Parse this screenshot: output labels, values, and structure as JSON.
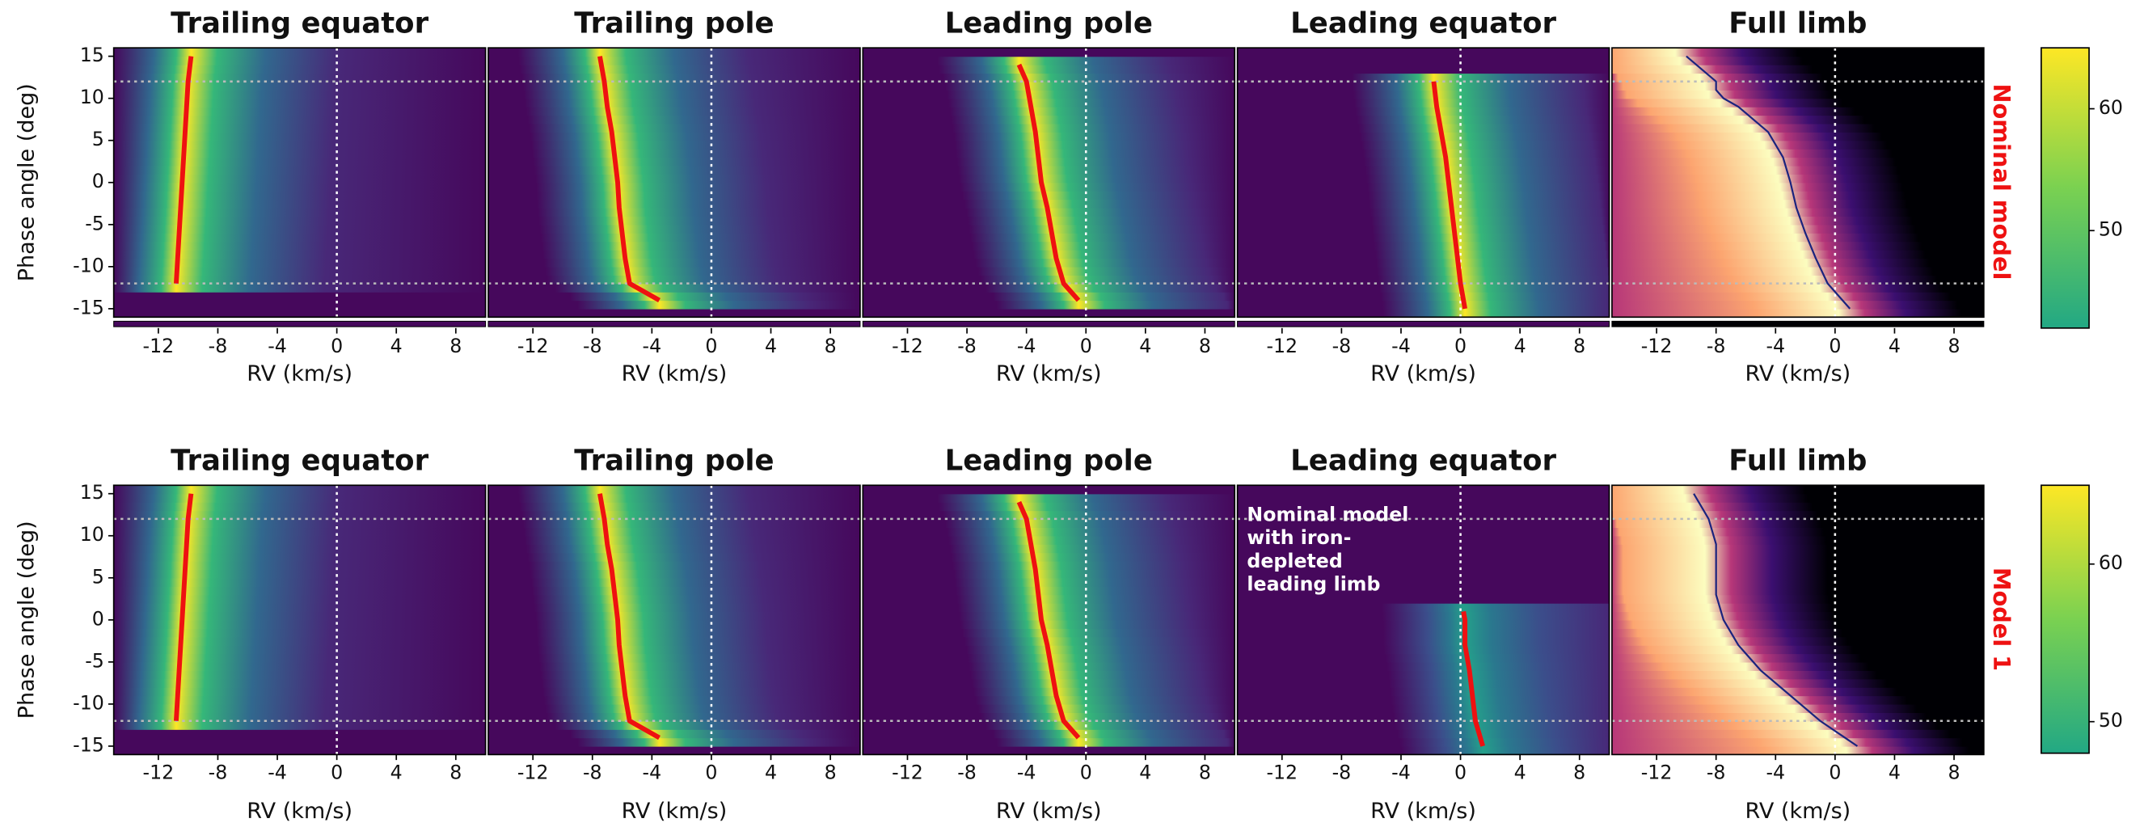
{
  "chart_data": [
    {
      "type": "heatmap",
      "title": "Trailing equator",
      "xlabel": "RV (km/s)",
      "ylabel": "Phase angle (deg)",
      "xlim": [
        -15,
        10
      ],
      "xticks": [
        -12,
        -8,
        -4,
        0,
        4,
        8
      ],
      "ylim": [
        -16,
        16
      ],
      "yticks": [
        15,
        10,
        5,
        0,
        -5,
        -10,
        -15
      ],
      "colormap": "viridis",
      "colors": [
        "#46085c",
        "#31688e",
        "#35b779",
        "#fde725"
      ],
      "hlines": [
        -12,
        12
      ],
      "vlines": [
        0
      ],
      "line": {
        "color": "#ee1111",
        "x": [
          -12,
          -9,
          -6,
          -3,
          0,
          3,
          6,
          9,
          12,
          15
        ],
        "values": [
          -10.8,
          -10.7,
          -10.6,
          -10.5,
          -10.4,
          -10.3,
          -10.2,
          -10.1,
          -10,
          -9.8
        ]
      }
    },
    {
      "type": "heatmap",
      "title": "Trailing pole",
      "xlabel": "RV (km/s)",
      "xlim": [
        -15,
        10
      ],
      "xticks": [
        -12,
        -8,
        -4,
        0,
        4,
        8
      ],
      "ylim": [
        -16,
        16
      ],
      "colormap": "viridis",
      "colors": [
        "#46085c",
        "#31688e",
        "#35b779",
        "#fde725"
      ],
      "hlines": [
        -12,
        12
      ],
      "vlines": [
        0
      ],
      "line": {
        "color": "#ee1111",
        "x": [
          -14,
          -12,
          -9,
          -6,
          -3,
          0,
          3,
          6,
          9,
          12,
          15
        ],
        "values": [
          -3.5,
          -5.5,
          -5.8,
          -6,
          -6.2,
          -6.3,
          -6.5,
          -6.7,
          -7,
          -7.2,
          -7.5
        ]
      }
    },
    {
      "type": "heatmap",
      "title": "Leading pole",
      "xlabel": "RV (km/s)",
      "xlim": [
        -15,
        10
      ],
      "xticks": [
        -12,
        -8,
        -4,
        0,
        4,
        8
      ],
      "ylim": [
        -16,
        16
      ],
      "colormap": "viridis",
      "colors": [
        "#46085c",
        "#31688e",
        "#35b779",
        "#fde725"
      ],
      "hlines": [
        -12,
        12
      ],
      "vlines": [
        0
      ],
      "line": {
        "color": "#ee1111",
        "x": [
          -14,
          -12,
          -9,
          -6,
          -3,
          0,
          3,
          6,
          9,
          12,
          14
        ],
        "values": [
          -0.5,
          -1.5,
          -2,
          -2.3,
          -2.6,
          -3,
          -3.2,
          -3.4,
          -3.7,
          -4,
          -4.5
        ]
      }
    },
    {
      "type": "heatmap",
      "title": "Leading equator",
      "xlabel": "RV (km/s)",
      "xlim": [
        -15,
        10
      ],
      "xticks": [
        -12,
        -8,
        -4,
        0,
        4,
        8
      ],
      "ylim": [
        -16,
        16
      ],
      "colormap": "viridis",
      "colors": [
        "#46085c",
        "#31688e",
        "#35b779",
        "#fde725"
      ],
      "hlines": [
        -12,
        12
      ],
      "vlines": [
        0
      ],
      "line": {
        "color": "#ee1111",
        "x": [
          -15,
          -12,
          -9,
          -6,
          -3,
          0,
          3,
          6,
          9,
          12
        ],
        "values": [
          0.3,
          0,
          -0.2,
          -0.4,
          -0.6,
          -0.8,
          -1,
          -1.3,
          -1.6,
          -1.8
        ]
      }
    },
    {
      "type": "heatmap",
      "title": "Full limb",
      "xlabel": "RV (km/s)",
      "xlim": [
        -15,
        10
      ],
      "xticks": [
        -12,
        -8,
        -4,
        0,
        4,
        8
      ],
      "ylim": [
        -16,
        16
      ],
      "colormap": "magma",
      "colors": [
        "#000004",
        "#b73779",
        "#fca570",
        "#fcfdbf"
      ],
      "hlines": [
        -12,
        12
      ],
      "vlines": [
        0
      ],
      "line": {
        "color": "#1a237e",
        "x": [
          -15,
          -12,
          -9,
          -6,
          -3,
          0,
          3,
          6,
          9,
          10,
          11,
          12,
          15
        ],
        "values": [
          1,
          -0.5,
          -1.3,
          -2,
          -2.6,
          -3,
          -3.5,
          -4.5,
          -6.5,
          -7.5,
          -8,
          -8,
          -10
        ]
      }
    },
    {
      "type": "heatmap",
      "title": "Trailing equator",
      "xlabel": "RV (km/s)",
      "ylabel": "Phase angle (deg)",
      "xlim": [
        -15,
        10
      ],
      "xticks": [
        -12,
        -8,
        -4,
        0,
        4,
        8
      ],
      "ylim": [
        -16,
        16
      ],
      "yticks": [
        15,
        10,
        5,
        0,
        -5,
        -10,
        -15
      ],
      "colormap": "viridis",
      "colors": [
        "#46085c",
        "#31688e",
        "#35b779",
        "#fde725"
      ],
      "hlines": [
        -12,
        12
      ],
      "vlines": [
        0
      ],
      "line": {
        "color": "#ee1111",
        "x": [
          -12,
          -9,
          -6,
          -3,
          0,
          3,
          6,
          9,
          12,
          15
        ],
        "values": [
          -10.8,
          -10.7,
          -10.6,
          -10.5,
          -10.4,
          -10.3,
          -10.2,
          -10.1,
          -10,
          -9.8
        ]
      }
    },
    {
      "type": "heatmap",
      "title": "Trailing pole",
      "xlabel": "RV (km/s)",
      "xlim": [
        -15,
        10
      ],
      "xticks": [
        -12,
        -8,
        -4,
        0,
        4,
        8
      ],
      "ylim": [
        -16,
        16
      ],
      "colormap": "viridis",
      "colors": [
        "#46085c",
        "#31688e",
        "#35b779",
        "#fde725"
      ],
      "hlines": [
        -12,
        12
      ],
      "vlines": [
        0
      ],
      "line": {
        "color": "#ee1111",
        "x": [
          -14,
          -12,
          -9,
          -6,
          -3,
          0,
          3,
          6,
          9,
          12,
          15
        ],
        "values": [
          -3.5,
          -5.5,
          -5.8,
          -6,
          -6.2,
          -6.3,
          -6.5,
          -6.7,
          -7,
          -7.2,
          -7.5
        ]
      }
    },
    {
      "type": "heatmap",
      "title": "Leading pole",
      "xlabel": "RV (km/s)",
      "xlim": [
        -15,
        10
      ],
      "xticks": [
        -12,
        -8,
        -4,
        0,
        4,
        8
      ],
      "ylim": [
        -16,
        16
      ],
      "colormap": "viridis",
      "colors": [
        "#46085c",
        "#31688e",
        "#35b779",
        "#fde725"
      ],
      "hlines": [
        -12,
        12
      ],
      "vlines": [
        0
      ],
      "line": {
        "color": "#ee1111",
        "x": [
          -14,
          -12,
          -9,
          -6,
          -3,
          0,
          3,
          6,
          9,
          12,
          14
        ],
        "values": [
          -0.5,
          -1.5,
          -2,
          -2.3,
          -2.6,
          -3,
          -3.2,
          -3.4,
          -3.7,
          -4,
          -4.5
        ]
      }
    },
    {
      "type": "heatmap",
      "title": "Leading equator",
      "xlabel": "RV (km/s)",
      "xlim": [
        -15,
        10
      ],
      "xticks": [
        -12,
        -8,
        -4,
        0,
        4,
        8
      ],
      "ylim": [
        -16,
        16
      ],
      "colormap": "viridis",
      "colors": [
        "#46085c",
        "#3b4e8b",
        "#2a788e",
        "#24a08a"
      ],
      "hlines": [
        -12,
        12
      ],
      "vlines": [
        0
      ],
      "annotation": [
        "Nominal model",
        "with iron-",
        "depleted",
        "leading limb"
      ],
      "line": {
        "color": "#ee1111",
        "x": [
          -15,
          -12,
          -9,
          -6,
          -3,
          0,
          1
        ],
        "values": [
          1.5,
          1,
          0.8,
          0.6,
          0.3,
          0.3,
          0.2
        ]
      }
    },
    {
      "type": "heatmap",
      "title": "Full limb",
      "xlabel": "RV (km/s)",
      "xlim": [
        -15,
        10
      ],
      "xticks": [
        -12,
        -8,
        -4,
        0,
        4,
        8
      ],
      "ylim": [
        -16,
        16
      ],
      "colormap": "magma",
      "colors": [
        "#000004",
        "#b73779",
        "#fca570",
        "#fcfdbf"
      ],
      "hlines": [
        -12,
        12
      ],
      "vlines": [
        0
      ],
      "line": {
        "color": "#1a237e",
        "x": [
          -15,
          -12,
          -9,
          -6,
          -3,
          0,
          3,
          6,
          9,
          12,
          15
        ],
        "values": [
          1.5,
          -1,
          -3,
          -5,
          -6.5,
          -7.5,
          -8,
          -8,
          -8,
          -8.5,
          -9.5
        ]
      }
    },
    {
      "type": "colorbar",
      "label": "Nominal model",
      "label_color": "#ee1111",
      "ylim": [
        42,
        65
      ],
      "yticks": [
        50,
        60
      ],
      "colors": [
        "#22a884",
        "#7ad151",
        "#fde725"
      ]
    },
    {
      "type": "colorbar",
      "label": "Model 1",
      "label_color": "#ee1111",
      "ylim": [
        48,
        65
      ],
      "yticks": [
        50,
        60
      ],
      "colors": [
        "#22a884",
        "#7ad151",
        "#fde725"
      ]
    }
  ]
}
